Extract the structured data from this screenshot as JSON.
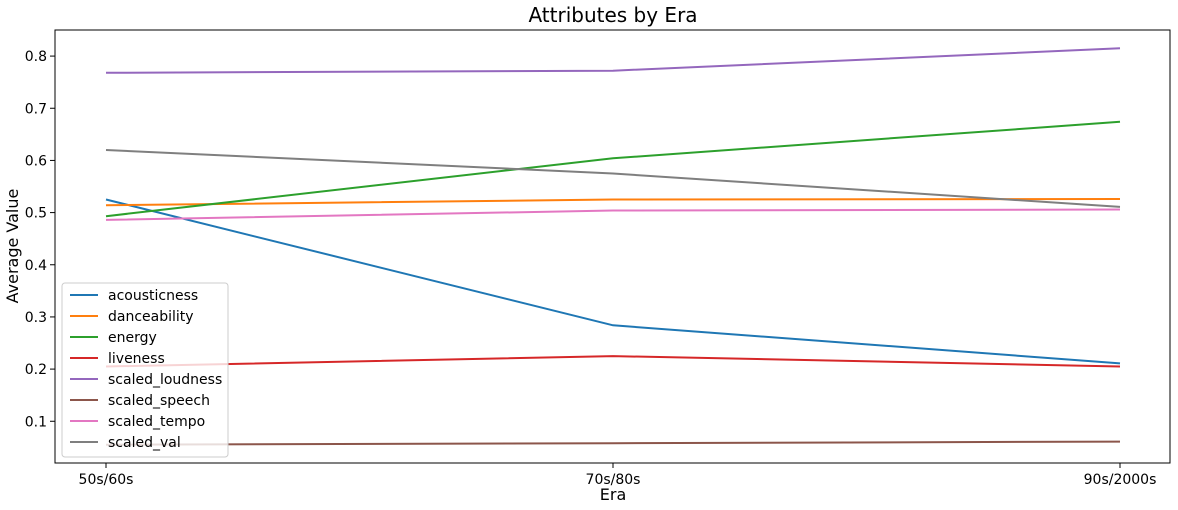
{
  "chart_data": {
    "type": "line",
    "title": "Attributes by Era",
    "xlabel": "Era",
    "ylabel": "Average Value",
    "categories": [
      "50s/60s",
      "70s/80s",
      "90s/2000s"
    ],
    "yticks": [
      "0.1",
      "0.2",
      "0.3",
      "0.4",
      "0.5",
      "0.6",
      "0.7",
      "0.8"
    ],
    "ylim": [
      0.02,
      0.85
    ],
    "grid": false,
    "legend_position": "lower-left",
    "series": [
      {
        "name": "acousticness",
        "color": "#1f77b4",
        "values": [
          0.525,
          0.284,
          0.211
        ]
      },
      {
        "name": "danceability",
        "color": "#ff7f0e",
        "values": [
          0.514,
          0.525,
          0.526
        ]
      },
      {
        "name": "energy",
        "color": "#2ca02c",
        "values": [
          0.493,
          0.604,
          0.674
        ]
      },
      {
        "name": "liveness",
        "color": "#d62728",
        "values": [
          0.205,
          0.225,
          0.205
        ]
      },
      {
        "name": "scaled_loudness",
        "color": "#9467bd",
        "values": [
          0.768,
          0.772,
          0.815
        ]
      },
      {
        "name": "scaled_speech",
        "color": "#8c564b",
        "values": [
          0.055,
          0.058,
          0.061
        ]
      },
      {
        "name": "scaled_tempo",
        "color": "#e377c2",
        "values": [
          0.486,
          0.504,
          0.506
        ]
      },
      {
        "name": "scaled_val",
        "color": "#7f7f7f",
        "values": [
          0.62,
          0.575,
          0.511
        ]
      }
    ]
  }
}
